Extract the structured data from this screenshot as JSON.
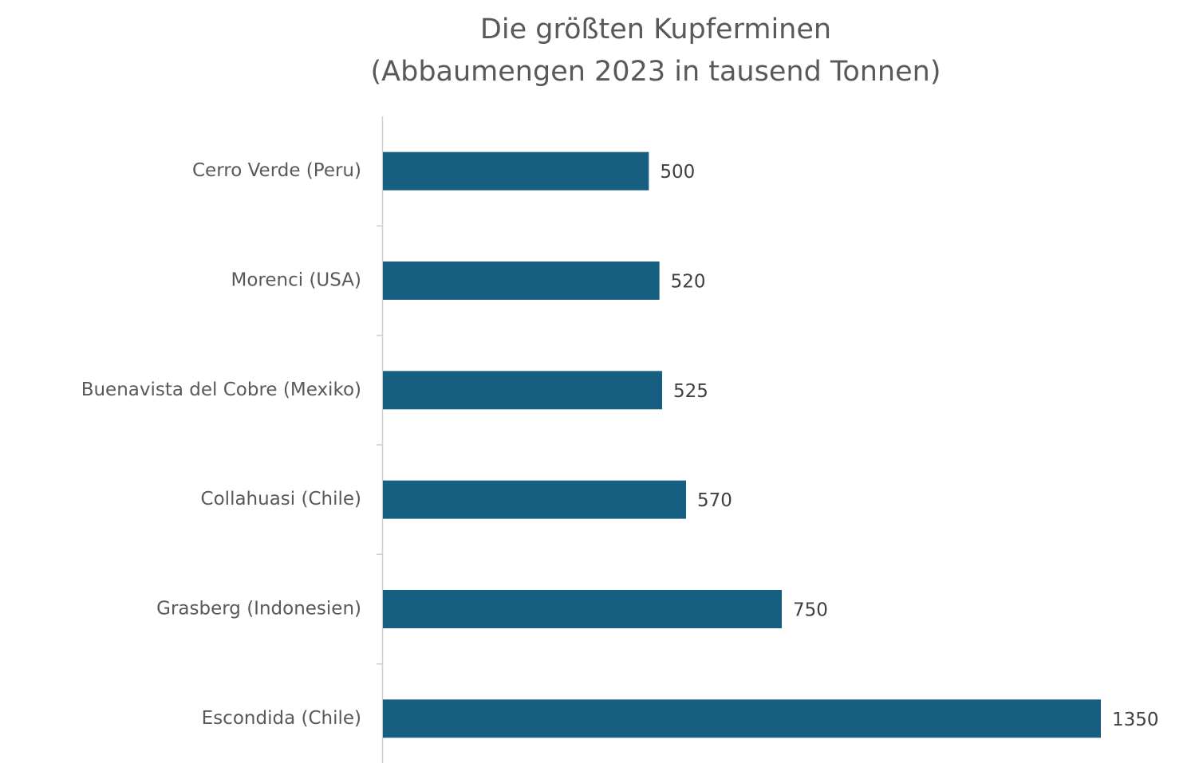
{
  "chart_data": {
    "type": "bar",
    "orientation": "horizontal",
    "title": "Die größten Kupferminen",
    "subtitle": "(Abbaumengen 2023 in tausend Tonnen)",
    "categories": [
      "Cerro Verde (Peru)",
      "Morenci (USA)",
      "Buenavista del Cobre (Mexiko)",
      "Collahuasi (Chile)",
      "Grasberg (Indonesien)",
      "Escondida (Chile)"
    ],
    "values": [
      500,
      520,
      525,
      570,
      750,
      1350
    ],
    "color": "#175f80"
  }
}
